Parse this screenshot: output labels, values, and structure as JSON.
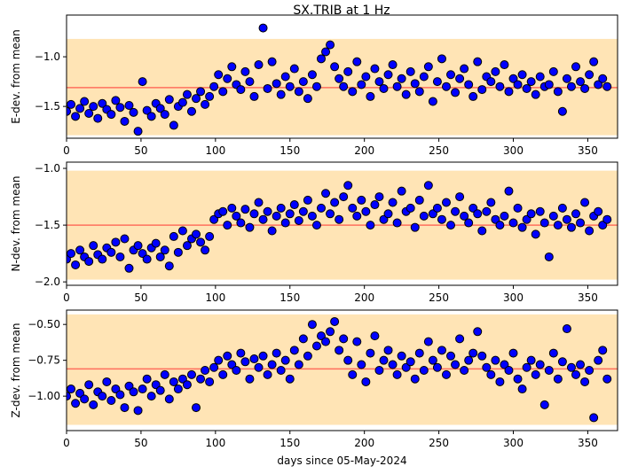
{
  "chart_data": [
    {
      "type": "scatter",
      "title": "SX.TRIB at 1 Hz",
      "ylabel": "E-dev. from mean",
      "x": [
        0,
        3,
        6,
        9,
        12,
        15,
        18,
        21,
        24,
        27,
        30,
        33,
        36,
        39,
        42,
        45,
        48,
        51,
        54,
        57,
        60,
        63,
        66,
        69,
        72,
        75,
        78,
        81,
        84,
        87,
        90,
        93,
        96,
        99,
        102,
        105,
        108,
        111,
        114,
        117,
        120,
        123,
        126,
        129,
        132,
        135,
        138,
        141,
        144,
        147,
        150,
        153,
        156,
        159,
        162,
        165,
        168,
        171,
        174,
        177,
        180,
        183,
        186,
        189,
        192,
        195,
        198,
        201,
        204,
        207,
        210,
        213,
        216,
        219,
        222,
        225,
        228,
        231,
        234,
        237,
        240,
        243,
        246,
        249,
        252,
        255,
        258,
        261,
        264,
        267,
        270,
        273,
        276,
        279,
        282,
        285,
        288,
        291,
        294,
        297,
        300,
        303,
        306,
        309,
        312,
        315,
        318,
        321,
        324,
        327,
        330,
        333,
        336,
        339,
        342,
        345,
        348,
        351,
        354,
        357,
        360,
        363
      ],
      "values": [
        -1.55,
        -1.48,
        -1.6,
        -1.52,
        -1.45,
        -1.57,
        -1.5,
        -1.62,
        -1.47,
        -1.53,
        -1.58,
        -1.44,
        -1.51,
        -1.65,
        -1.49,
        -1.56,
        -1.75,
        -1.25,
        -1.54,
        -1.6,
        -1.47,
        -1.52,
        -1.58,
        -1.43,
        -1.69,
        -1.5,
        -1.46,
        -1.38,
        -1.55,
        -1.42,
        -1.35,
        -1.48,
        -1.4,
        -1.3,
        -1.18,
        -1.35,
        -1.22,
        -1.1,
        -1.28,
        -1.33,
        -1.15,
        -1.25,
        -1.4,
        -1.08,
        -0.71,
        -1.32,
        -1.05,
        -1.27,
        -1.38,
        -1.2,
        -1.3,
        -1.12,
        -1.35,
        -1.25,
        -1.42,
        -1.18,
        -1.3,
        -1.02,
        -0.95,
        -0.88,
        -1.1,
        -1.22,
        -1.3,
        -1.15,
        -1.35,
        -1.05,
        -1.28,
        -1.2,
        -1.4,
        -1.12,
        -1.25,
        -1.32,
        -1.18,
        -1.08,
        -1.3,
        -1.22,
        -1.38,
        -1.15,
        -1.27,
        -1.35,
        -1.2,
        -1.1,
        -1.45,
        -1.25,
        -1.02,
        -1.3,
        -1.18,
        -1.36,
        -1.22,
        -1.12,
        -1.28,
        -1.4,
        -1.05,
        -1.33,
        -1.2,
        -1.25,
        -1.15,
        -1.3,
        -1.08,
        -1.35,
        -1.22,
        -1.28,
        -1.18,
        -1.32,
        -1.25,
        -1.38,
        -1.2,
        -1.3,
        -1.28,
        -1.15,
        -1.35,
        -1.55,
        -1.22,
        -1.3,
        -1.1,
        -1.25,
        -1.32,
        -1.18,
        -1.05,
        -1.28,
        -1.22,
        -1.3
      ],
      "color": "#0000ff",
      "band": [
        -1.79,
        -0.82
      ],
      "band_color": "#ffe4b5",
      "mean": -1.31,
      "mean_color": "#ff6f5e",
      "xlim": [
        0,
        370
      ],
      "ylim": [
        -1.82,
        -0.58
      ],
      "xticks": [
        0,
        50,
        100,
        150,
        200,
        250,
        300,
        350
      ],
      "yticks": [
        {
          "value": -1.0,
          "label": "−1.0"
        },
        {
          "value": -1.5,
          "label": "−1.5"
        }
      ]
    },
    {
      "type": "scatter",
      "ylabel": "N-dev. from mean",
      "x": [
        0,
        3,
        6,
        9,
        12,
        15,
        18,
        21,
        24,
        27,
        30,
        33,
        36,
        39,
        42,
        45,
        48,
        51,
        54,
        57,
        60,
        63,
        66,
        69,
        72,
        75,
        78,
        81,
        84,
        87,
        90,
        93,
        96,
        99,
        102,
        105,
        108,
        111,
        114,
        117,
        120,
        123,
        126,
        129,
        132,
        135,
        138,
        141,
        144,
        147,
        150,
        153,
        156,
        159,
        162,
        165,
        168,
        171,
        174,
        177,
        180,
        183,
        186,
        189,
        192,
        195,
        198,
        201,
        204,
        207,
        210,
        213,
        216,
        219,
        222,
        225,
        228,
        231,
        234,
        237,
        240,
        243,
        246,
        249,
        252,
        255,
        258,
        261,
        264,
        267,
        270,
        273,
        276,
        279,
        282,
        285,
        288,
        291,
        294,
        297,
        300,
        303,
        306,
        309,
        312,
        315,
        318,
        321,
        324,
        327,
        330,
        333,
        336,
        339,
        342,
        345,
        348,
        351,
        354,
        357,
        360,
        363
      ],
      "values": [
        -1.8,
        -1.75,
        -1.85,
        -1.72,
        -1.78,
        -1.82,
        -1.68,
        -1.76,
        -1.8,
        -1.7,
        -1.74,
        -1.65,
        -1.78,
        -1.62,
        -1.88,
        -1.72,
        -1.68,
        -1.75,
        -1.8,
        -1.7,
        -1.66,
        -1.78,
        -1.72,
        -1.86,
        -1.6,
        -1.74,
        -1.55,
        -1.68,
        -1.62,
        -1.58,
        -1.65,
        -1.72,
        -1.6,
        -1.45,
        -1.4,
        -1.38,
        -1.5,
        -1.35,
        -1.42,
        -1.48,
        -1.36,
        -1.52,
        -1.4,
        -1.3,
        -1.45,
        -1.38,
        -1.55,
        -1.42,
        -1.35,
        -1.48,
        -1.4,
        -1.32,
        -1.46,
        -1.38,
        -1.28,
        -1.42,
        -1.5,
        -1.35,
        -1.22,
        -1.4,
        -1.3,
        -1.45,
        -1.25,
        -1.15,
        -1.35,
        -1.42,
        -1.28,
        -1.38,
        -1.5,
        -1.32,
        -1.25,
        -1.45,
        -1.4,
        -1.3,
        -1.48,
        -1.2,
        -1.38,
        -1.35,
        -1.52,
        -1.28,
        -1.42,
        -1.15,
        -1.4,
        -1.35,
        -1.45,
        -1.3,
        -1.5,
        -1.38,
        -1.25,
        -1.42,
        -1.48,
        -1.35,
        -1.4,
        -1.55,
        -1.38,
        -1.3,
        -1.45,
        -1.5,
        -1.42,
        -1.2,
        -1.48,
        -1.35,
        -1.52,
        -1.45,
        -1.4,
        -1.58,
        -1.38,
        -1.48,
        -1.78,
        -1.42,
        -1.5,
        -1.35,
        -1.45,
        -1.52,
        -1.4,
        -1.48,
        -1.3,
        -1.55,
        -1.42,
        -1.38,
        -1.5,
        -1.45
      ],
      "color": "#0000ff",
      "band": [
        -1.98,
        -1.02
      ],
      "band_color": "#ffe4b5",
      "mean": -1.5,
      "mean_color": "#ff6f5e",
      "xlim": [
        0,
        370
      ],
      "ylim": [
        -2.03,
        -0.945
      ],
      "xticks": [
        0,
        50,
        100,
        150,
        200,
        250,
        300,
        350
      ],
      "yticks": [
        {
          "value": -1.0,
          "label": "−1.0"
        },
        {
          "value": -1.5,
          "label": "−1.5"
        },
        {
          "value": -2.0,
          "label": "−2.0"
        }
      ]
    },
    {
      "type": "scatter",
      "ylabel": "Z-dev. from mean",
      "xlabel": "days since 05-May-2024",
      "x": [
        0,
        3,
        6,
        9,
        12,
        15,
        18,
        21,
        24,
        27,
        30,
        33,
        36,
        39,
        42,
        45,
        48,
        51,
        54,
        57,
        60,
        63,
        66,
        69,
        72,
        75,
        78,
        81,
        84,
        87,
        90,
        93,
        96,
        99,
        102,
        105,
        108,
        111,
        114,
        117,
        120,
        123,
        126,
        129,
        132,
        135,
        138,
        141,
        144,
        147,
        150,
        153,
        156,
        159,
        162,
        165,
        168,
        171,
        174,
        177,
        180,
        183,
        186,
        189,
        192,
        195,
        198,
        201,
        204,
        207,
        210,
        213,
        216,
        219,
        222,
        225,
        228,
        231,
        234,
        237,
        240,
        243,
        246,
        249,
        252,
        255,
        258,
        261,
        264,
        267,
        270,
        273,
        276,
        279,
        282,
        285,
        288,
        291,
        294,
        297,
        300,
        303,
        306,
        309,
        312,
        315,
        318,
        321,
        324,
        327,
        330,
        333,
        336,
        339,
        342,
        345,
        348,
        351,
        354,
        357,
        360,
        363
      ],
      "values": [
        -1.0,
        -0.95,
        -1.05,
        -0.98,
        -1.02,
        -0.92,
        -1.06,
        -0.97,
        -1.0,
        -0.9,
        -1.03,
        -0.95,
        -0.99,
        -1.08,
        -0.93,
        -0.97,
        -1.1,
        -0.95,
        -0.88,
        -1.0,
        -0.92,
        -0.96,
        -0.85,
        -1.02,
        -0.9,
        -0.95,
        -0.88,
        -0.92,
        -0.85,
        -1.08,
        -0.88,
        -0.82,
        -0.9,
        -0.8,
        -0.75,
        -0.85,
        -0.72,
        -0.78,
        -0.82,
        -0.7,
        -0.76,
        -0.88,
        -0.74,
        -0.8,
        -0.72,
        -0.85,
        -0.78,
        -0.7,
        -0.82,
        -0.75,
        -0.88,
        -0.68,
        -0.78,
        -0.6,
        -0.72,
        -0.5,
        -0.65,
        -0.58,
        -0.62,
        -0.55,
        -0.48,
        -0.68,
        -0.6,
        -0.75,
        -0.85,
        -0.62,
        -0.78,
        -0.9,
        -0.7,
        -0.58,
        -0.82,
        -0.75,
        -0.68,
        -0.78,
        -0.85,
        -0.72,
        -0.8,
        -0.76,
        -0.88,
        -0.7,
        -0.82,
        -0.62,
        -0.75,
        -0.8,
        -0.68,
        -0.85,
        -0.72,
        -0.78,
        -0.6,
        -0.82,
        -0.75,
        -0.7,
        -0.55,
        -0.72,
        -0.8,
        -0.85,
        -0.75,
        -0.9,
        -0.78,
        -0.82,
        -0.7,
        -0.88,
        -0.95,
        -0.8,
        -0.75,
        -0.85,
        -0.78,
        -1.06,
        -0.82,
        -0.7,
        -0.88,
        -0.76,
        -0.53,
        -0.8,
        -0.85,
        -0.78,
        -0.9,
        -0.82,
        -1.15,
        -0.75,
        -0.68,
        -0.88
      ],
      "color": "#0000ff",
      "band": [
        -1.2,
        -0.43
      ],
      "band_color": "#ffe4b5",
      "mean": -0.81,
      "mean_color": "#ff6f5e",
      "xlim": [
        0,
        370
      ],
      "ylim": [
        -1.24,
        -0.4
      ],
      "xticks": [
        0,
        50,
        100,
        150,
        200,
        250,
        300,
        350
      ],
      "yticks": [
        {
          "value": -0.5,
          "label": "−0.50"
        },
        {
          "value": -0.75,
          "label": "−0.75"
        },
        {
          "value": -1.0,
          "label": "−1.00"
        }
      ]
    }
  ]
}
